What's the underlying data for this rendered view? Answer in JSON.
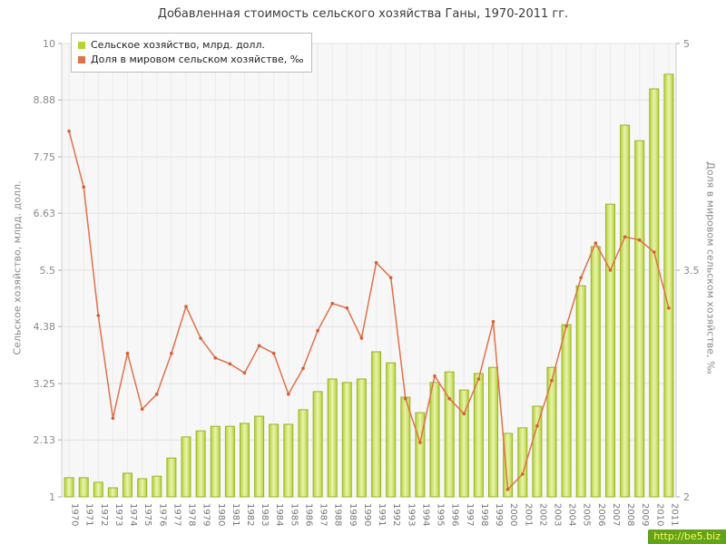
{
  "title": "Добавленная стоимость сельского хозяйства Ганы, 1970-2011 гг.",
  "watermark": "http://be5.biz",
  "chart_data": {
    "type": "bar",
    "title": "Добавленная стоимость сельского хозяйства Ганы, 1970-2011 гг.",
    "categories": [
      "1970",
      "1971",
      "1972",
      "1973",
      "1974",
      "1975",
      "1976",
      "1977",
      "1978",
      "1979",
      "1980",
      "1981",
      "1982",
      "1983",
      "1984",
      "1985",
      "1986",
      "1987",
      "1988",
      "1989",
      "1990",
      "1991",
      "1992",
      "1993",
      "1994",
      "1995",
      "1996",
      "1997",
      "1998",
      "1999",
      "2000",
      "2001",
      "2002",
      "2003",
      "2004",
      "2005",
      "2006",
      "2007",
      "2008",
      "2009",
      "2010",
      "2011"
    ],
    "series": [
      {
        "name": "Сельское хозяйство, млрд. долл.",
        "type": "bar",
        "axis": "left",
        "color": "#b5d334",
        "stroke": "#9ab427",
        "values": [
          1.38,
          1.38,
          1.29,
          1.18,
          1.47,
          1.36,
          1.41,
          1.77,
          2.19,
          2.31,
          2.4,
          2.4,
          2.46,
          2.6,
          2.44,
          2.44,
          2.73,
          3.09,
          3.34,
          3.27,
          3.34,
          3.88,
          3.66,
          2.98,
          2.67,
          3.27,
          3.48,
          3.12,
          3.45,
          3.57,
          2.26,
          2.37,
          2.8,
          3.57,
          4.42,
          5.19,
          5.97,
          6.81,
          8.38,
          8.07,
          9.1,
          9.39
        ]
      },
      {
        "name": "Доля в мировом сельском хозяйстве, ‰",
        "type": "line",
        "axis": "right",
        "color": "#e0714a",
        "stroke": "#d35f35",
        "values": [
          4.42,
          4.05,
          3.2,
          2.52,
          2.95,
          2.58,
          2.68,
          2.95,
          3.26,
          3.05,
          2.92,
          2.88,
          2.82,
          3.0,
          2.95,
          2.68,
          2.85,
          3.1,
          3.28,
          3.25,
          3.05,
          3.55,
          3.45,
          2.65,
          2.36,
          2.8,
          2.65,
          2.55,
          2.78,
          3.16,
          2.05,
          2.15,
          2.47,
          2.77,
          3.13,
          3.45,
          3.68,
          3.5,
          3.72,
          3.7,
          3.62,
          3.25
        ]
      }
    ],
    "left_axis": {
      "label": "Сельское хозяйство, млрд. долл.",
      "ticks": [
        1,
        2.13,
        3.25,
        4.38,
        5.5,
        6.63,
        7.75,
        8.88,
        10
      ],
      "range": [
        1,
        10
      ]
    },
    "right_axis": {
      "label": "Доля в мировом сельском хозяйстве, ‰",
      "ticks": [
        2,
        3.5,
        5
      ],
      "range": [
        2,
        5
      ]
    },
    "grid": true,
    "legend_position": "top-left"
  }
}
